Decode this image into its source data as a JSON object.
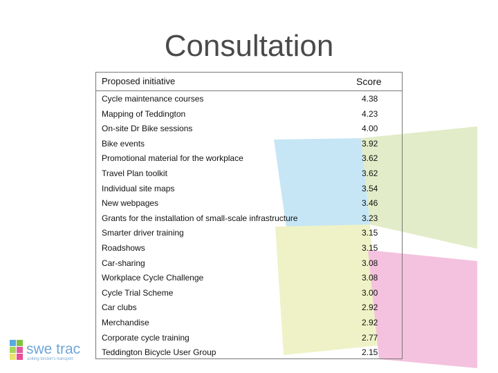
{
  "slide": {
    "title": "Consultation",
    "table": {
      "headers": {
        "initiative": "Proposed initiative",
        "score": "Score"
      },
      "rows": [
        {
          "initiative": "Cycle maintenance courses",
          "score": "4.38"
        },
        {
          "initiative": "Mapping of Teddington",
          "score": "4.23"
        },
        {
          "initiative": "On-site Dr Bike sessions",
          "score": "4.00"
        },
        {
          "initiative": "Bike events",
          "score": "3.92"
        },
        {
          "initiative": "Promotional material for the workplace",
          "score": "3.62"
        },
        {
          "initiative": "Travel Plan toolkit",
          "score": "3.62"
        },
        {
          "initiative": "Individual site maps",
          "score": "3.54"
        },
        {
          "initiative": "New webpages",
          "score": "3.46"
        },
        {
          "initiative": "Grants for the installation of small-scale infrastructure",
          "score": "3.23"
        },
        {
          "initiative": "Smarter driver training",
          "score": "3.15"
        },
        {
          "initiative": "Roadshows",
          "score": "3.15"
        },
        {
          "initiative": "Car-sharing",
          "score": "3.08"
        },
        {
          "initiative": "Workplace Cycle Challenge",
          "score": "3.08"
        },
        {
          "initiative": "Cycle Trial Scheme",
          "score": "3.00"
        },
        {
          "initiative": "Car clubs",
          "score": "2.92"
        },
        {
          "initiative": "Merchandise",
          "score": "2.92"
        },
        {
          "initiative": "Corporate cycle training",
          "score": "2.77"
        },
        {
          "initiative": "Teddington Bicycle User Group",
          "score": "2.15"
        }
      ]
    },
    "logo": {
      "name": "swe trac",
      "tagline": "uniting london's transport"
    },
    "colors": {
      "blue_shape": "#c6e6f6",
      "green_shape_right": "#e2ecc8",
      "yellow_shape": "#eef2c6",
      "pink_shape": "#f4c2de",
      "border": "#777777"
    }
  }
}
